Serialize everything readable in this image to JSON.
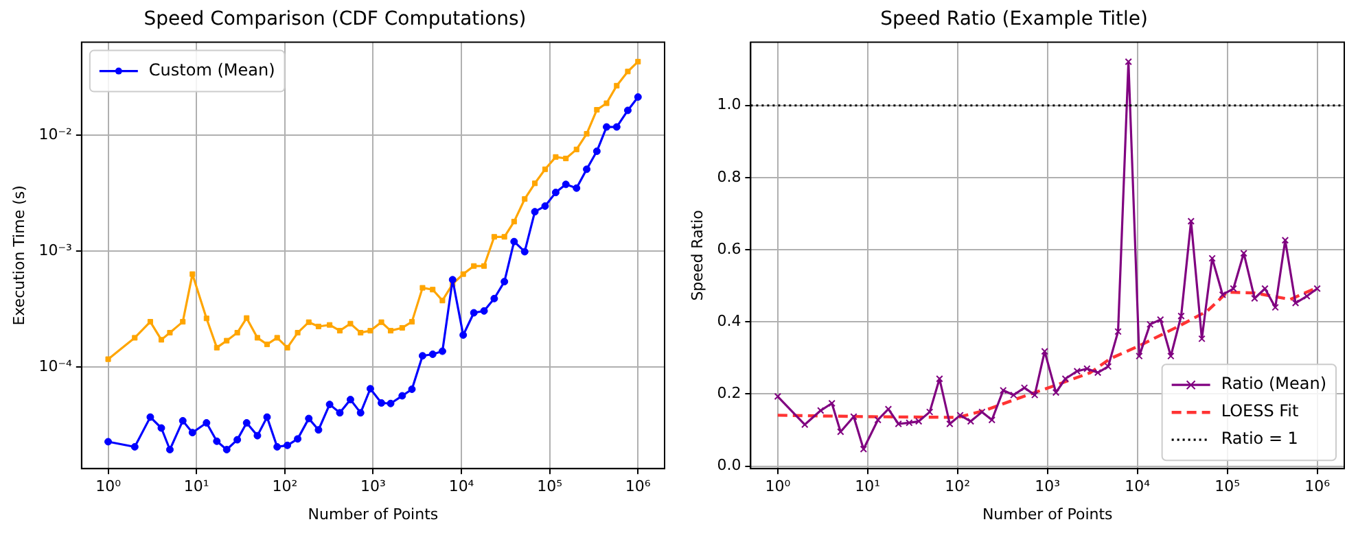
{
  "chart_data": [
    {
      "type": "line",
      "title": "Speed Comparison (CDF Computations)",
      "xlabel": "Number of Points",
      "ylabel": "Execution Time (s)",
      "log": "xy",
      "grid": true,
      "legend": "top left",
      "xlim": [
        0.5,
        2000000
      ],
      "ylim": [
        1.33e-05,
        0.0635
      ],
      "xticks": [
        {
          "value": 1,
          "label": "10⁰"
        },
        {
          "value": 10,
          "label": "10¹"
        },
        {
          "value": 100,
          "label": "10²"
        },
        {
          "value": 1000,
          "label": "10³"
        },
        {
          "value": 10000,
          "label": "10⁴"
        },
        {
          "value": 100000,
          "label": "10⁵"
        },
        {
          "value": 1000000,
          "label": "10⁶"
        }
      ],
      "yticks": [
        {
          "value": 0.0001,
          "label": "10⁻⁴"
        },
        {
          "value": 0.001,
          "label": "10⁻³"
        },
        {
          "value": 0.01,
          "label": "10⁻²"
        }
      ],
      "x": [
        1,
        2,
        3,
        4,
        5,
        7,
        9,
        13,
        17,
        22,
        29,
        37,
        49,
        63,
        82,
        107,
        140,
        187,
        241,
        322,
        420,
        554,
        722,
        931,
        1242,
        1581,
        2137,
        2754,
        3631,
        4732,
        6099,
        7955,
        10490,
        13840,
        18060,
        23550,
        30690,
        39530,
        52120,
        67920,
        88700,
        117000,
        152500,
        201300,
        262400,
        342000,
        440600,
        574300,
        767000,
        1000000
      ],
      "series": [
        {
          "name": "Custom (Mean)",
          "color": "#0000ff",
          "marker": "circle",
          "values": [
            2.27e-05,
            2.05e-05,
            3.7e-05,
            2.98e-05,
            1.94e-05,
            3.44e-05,
            2.72e-05,
            3.3e-05,
            2.29e-05,
            1.94e-05,
            2.36e-05,
            3.3e-05,
            2.56e-05,
            3.7e-05,
            2.05e-05,
            2.11e-05,
            2.4e-05,
            3.6e-05,
            2.87e-05,
            4.76e-05,
            4.03e-05,
            5.24e-05,
            4.03e-05,
            6.5e-05,
            4.9e-05,
            4.85e-05,
            5.65e-05,
            6.44e-05,
            0.000125,
            0.000129,
            0.000137,
            0.000567,
            0.000189,
            0.000294,
            0.000305,
            0.00039,
            0.000546,
            0.00121,
            0.00099,
            0.00219,
            0.00245,
            0.00321,
            0.00377,
            0.0035,
            0.00509,
            0.00728,
            0.0118,
            0.0118,
            0.0164,
            0.0214
          ]
        },
        {
          "color": "#ffa500",
          "marker": "square",
          "values": [
            0.000117,
            0.000179,
            0.000246,
            0.000172,
            0.000198,
            0.000246,
            0.000634,
            0.000263,
            0.000147,
            0.000169,
            0.000198,
            0.000265,
            0.000179,
            0.000157,
            0.000179,
            0.000147,
            0.000198,
            0.000244,
            0.000224,
            0.000231,
            0.000206,
            0.000237,
            0.000198,
            0.000206,
            0.000244,
            0.000206,
            0.000218,
            0.000246,
            0.000483,
            0.000466,
            0.000375,
            0.000521,
            0.000634,
            0.000745,
            0.000745,
            0.00133,
            0.00133,
            0.0018,
            0.00282,
            0.00385,
            0.00509,
            0.0065,
            0.00631,
            0.00755,
            0.0103,
            0.0166,
            0.0189,
            0.0268,
            0.0355,
            0.0432
          ]
        }
      ]
    },
    {
      "type": "line",
      "title": "Speed Ratio (Example Title)",
      "xlabel": "Number of Points",
      "ylabel": "Speed Ratio",
      "log": "x",
      "grid": true,
      "legend": "bottom right",
      "xlim": [
        0.5,
        2000000
      ],
      "ylim": [
        -0.007,
        1.175
      ],
      "xticks": [
        {
          "value": 1,
          "label": "10⁰"
        },
        {
          "value": 10,
          "label": "10¹"
        },
        {
          "value": 100,
          "label": "10²"
        },
        {
          "value": 1000,
          "label": "10³"
        },
        {
          "value": 10000,
          "label": "10⁴"
        },
        {
          "value": 100000,
          "label": "10⁵"
        },
        {
          "value": 1000000,
          "label": "10⁶"
        }
      ],
      "yticks": [
        {
          "value": 0,
          "label": "0.0"
        },
        {
          "value": 0.2,
          "label": "0.2"
        },
        {
          "value": 0.4,
          "label": "0.4"
        },
        {
          "value": 0.6,
          "label": "0.6"
        },
        {
          "value": 0.8,
          "label": "0.8"
        },
        {
          "value": 1,
          "label": "1.0"
        }
      ],
      "x": [
        1,
        2,
        3,
        4,
        5,
        7,
        9,
        13,
        17,
        22,
        29,
        37,
        49,
        63,
        82,
        107,
        140,
        187,
        241,
        322,
        420,
        554,
        722,
        931,
        1242,
        1581,
        2137,
        2754,
        3631,
        4732,
        6099,
        7955,
        10490,
        13840,
        18060,
        23550,
        30690,
        39530,
        52120,
        67920,
        88700,
        117000,
        152500,
        201300,
        262400,
        342000,
        440600,
        574300,
        767000,
        1000000
      ],
      "series": [
        {
          "name": "Ratio (Mean)",
          "color": "#800080",
          "marker": "cross",
          "values": [
            0.193,
            0.115,
            0.154,
            0.174,
            0.095,
            0.137,
            0.047,
            0.128,
            0.158,
            0.117,
            0.12,
            0.124,
            0.15,
            0.242,
            0.117,
            0.141,
            0.124,
            0.15,
            0.128,
            0.21,
            0.197,
            0.217,
            0.197,
            0.318,
            0.204,
            0.242,
            0.263,
            0.27,
            0.259,
            0.276,
            0.373,
            1.121,
            0.305,
            0.393,
            0.406,
            0.305,
            0.416,
            0.679,
            0.353,
            0.576,
            0.475,
            0.492,
            0.59,
            0.465,
            0.492,
            0.44,
            0.626,
            0.452,
            0.471,
            0.492
          ]
        },
        {
          "name": "LOESS Fit",
          "color": "#ff3333",
          "type": "line",
          "marker": "none",
          "line_style": "dashed",
          "x": [
            1,
            10,
            100,
            200,
            500,
            1000,
            3000,
            5000,
            10000,
            30000,
            60000,
            100000,
            200000,
            500000,
            1000000
          ],
          "values": [
            0.141,
            0.137,
            0.135,
            0.154,
            0.19,
            0.216,
            0.259,
            0.298,
            0.331,
            0.39,
            0.43,
            0.482,
            0.48,
            0.462,
            0.495
          ]
        }
      ],
      "ref_lines": [
        {
          "axis": "y",
          "value": 1,
          "label": "Ratio = 1",
          "color": "#000000",
          "line_style": "dotted"
        }
      ]
    }
  ]
}
